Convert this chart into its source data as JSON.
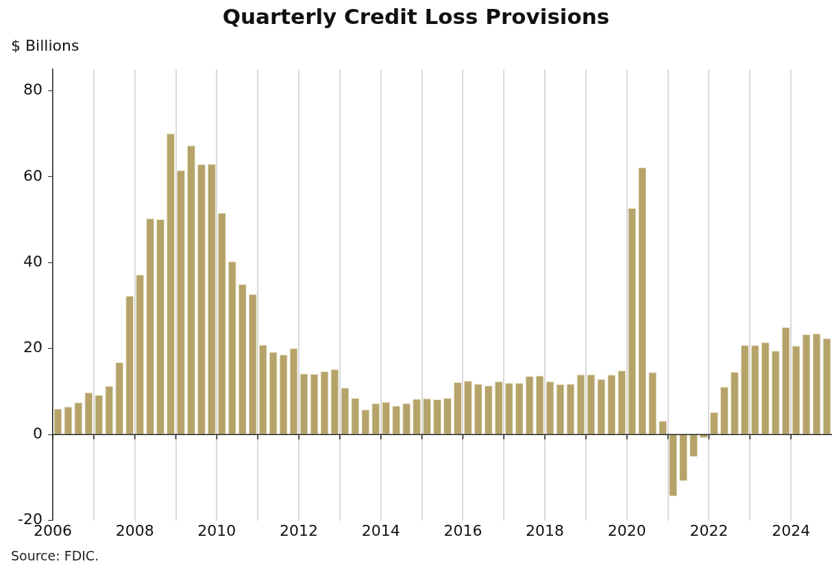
{
  "chart_data": {
    "type": "bar",
    "title": "Quarterly Credit Loss Provisions",
    "ylabel": "$ Billions",
    "annotations": [
      "Source: FDIC."
    ],
    "x": [
      2006.125,
      2006.375,
      2006.625,
      2006.875,
      2007.125,
      2007.375,
      2007.625,
      2007.875,
      2008.125,
      2008.375,
      2008.625,
      2008.875,
      2009.125,
      2009.375,
      2009.625,
      2009.875,
      2010.125,
      2010.375,
      2010.625,
      2010.875,
      2011.125,
      2011.375,
      2011.625,
      2011.875,
      2012.125,
      2012.375,
      2012.625,
      2012.875,
      2013.125,
      2013.375,
      2013.625,
      2013.875,
      2014.125,
      2014.375,
      2014.625,
      2014.875,
      2015.125,
      2015.375,
      2015.625,
      2015.875,
      2016.125,
      2016.375,
      2016.625,
      2016.875,
      2017.125,
      2017.375,
      2017.625,
      2017.875,
      2018.125,
      2018.375,
      2018.625,
      2018.875,
      2019.125,
      2019.375,
      2019.625,
      2019.875,
      2020.125,
      2020.375,
      2020.625,
      2020.875,
      2021.125,
      2021.375,
      2021.625,
      2021.875,
      2022.125,
      2022.375,
      2022.625,
      2022.875,
      2023.125,
      2023.375,
      2023.625,
      2023.875,
      2024.125,
      2024.375,
      2024.625,
      2024.875
    ],
    "values": [
      6.0,
      6.5,
      7.5,
      9.8,
      9.2,
      11.3,
      16.8,
      32.3,
      37.2,
      50.3,
      50.1,
      70.1,
      61.5,
      67.3,
      62.9,
      63.0,
      51.6,
      40.3,
      35.0,
      32.7,
      20.9,
      19.2,
      18.6,
      20.1,
      14.2,
      14.1,
      14.7,
      15.2,
      10.9,
      8.5,
      5.8,
      7.3,
      7.6,
      6.7,
      7.3,
      8.3,
      8.4,
      8.2,
      8.5,
      12.2,
      12.5,
      11.8,
      11.4,
      12.4,
      12.0,
      12.0,
      13.6,
      13.7,
      12.4,
      11.7,
      11.8,
      14.0,
      14.0,
      12.9,
      13.9,
      14.9,
      52.7,
      62.2,
      14.5,
      3.2,
      -14.4,
      -10.8,
      -5.2,
      -0.8,
      5.2,
      11.1,
      14.6,
      20.8,
      20.8,
      21.5,
      19.5,
      25.0,
      20.7,
      23.3,
      23.5,
      22.4
    ],
    "color": "#b5a36a",
    "xlim": [
      2006,
      2025
    ],
    "xticks": [
      2006,
      {
        "value": 2007,
        "label": null
      },
      2008,
      {
        "value": 2009,
        "label": null
      },
      2010,
      {
        "value": 2011,
        "label": null
      },
      2012,
      {
        "value": 2013,
        "label": null
      },
      2014,
      {
        "value": 2015,
        "label": null
      },
      2016,
      {
        "value": 2017,
        "label": null
      },
      2018,
      {
        "value": 2019,
        "label": null
      },
      2020,
      {
        "value": 2021,
        "label": null
      },
      2022,
      {
        "value": 2023,
        "label": null
      },
      2024
    ],
    "ylim": [
      -20,
      85
    ],
    "yticks": [
      -20,
      0,
      20,
      40,
      60,
      80
    ],
    "grid": "x",
    "legend": false,
    "ref_lines": [
      {
        "axis": "y",
        "value": 0,
        "color": "#222222"
      }
    ]
  }
}
